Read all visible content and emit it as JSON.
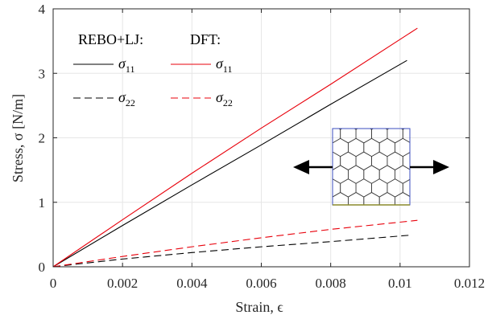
{
  "chart_data": {
    "type": "line",
    "xlabel": "Strain, ϵ",
    "ylabel": "Stress, σ [N/m]",
    "xlim": [
      0,
      0.012
    ],
    "ylim": [
      0,
      4
    ],
    "xticks": [
      "0",
      "0.002",
      "0.004",
      "0.006",
      "0.008",
      "0.01",
      "0.012"
    ],
    "yticks": [
      "0",
      "1",
      "2",
      "3",
      "4"
    ],
    "grid": true,
    "legend": {
      "placement": "top-left",
      "groups": [
        "REBO+LJ:",
        "DFT:"
      ]
    },
    "series": [
      {
        "name": "σ11",
        "group": "REBO+LJ:",
        "color": "#000000",
        "dash": "solid",
        "x": [
          0,
          0.002,
          0.004,
          0.006,
          0.008,
          0.0102
        ],
        "y": [
          0,
          0.64,
          1.27,
          1.89,
          2.52,
          3.2
        ]
      },
      {
        "name": "σ22",
        "group": "REBO+LJ:",
        "color": "#000000",
        "dash": "dashed",
        "x": [
          0,
          0.002,
          0.004,
          0.006,
          0.008,
          0.0103
        ],
        "y": [
          0,
          0.12,
          0.22,
          0.31,
          0.39,
          0.49
        ]
      },
      {
        "name": "σ11",
        "group": "DFT:",
        "color": "#e8000b",
        "dash": "solid",
        "x": [
          0,
          0.002,
          0.004,
          0.006,
          0.008,
          0.0105
        ],
        "y": [
          0,
          0.73,
          1.45,
          2.15,
          2.83,
          3.7
        ]
      },
      {
        "name": "σ22",
        "group": "DFT:",
        "color": "#e8000b",
        "dash": "dashed",
        "x": [
          0,
          0.002,
          0.004,
          0.006,
          0.008,
          0.0105
        ],
        "y": [
          0,
          0.16,
          0.31,
          0.45,
          0.58,
          0.72
        ]
      }
    ],
    "inset": {
      "description_icon": "graphene-sheet-tension-icon",
      "edge_color": "#3b4dbf",
      "arrow_color": "#000000"
    }
  }
}
